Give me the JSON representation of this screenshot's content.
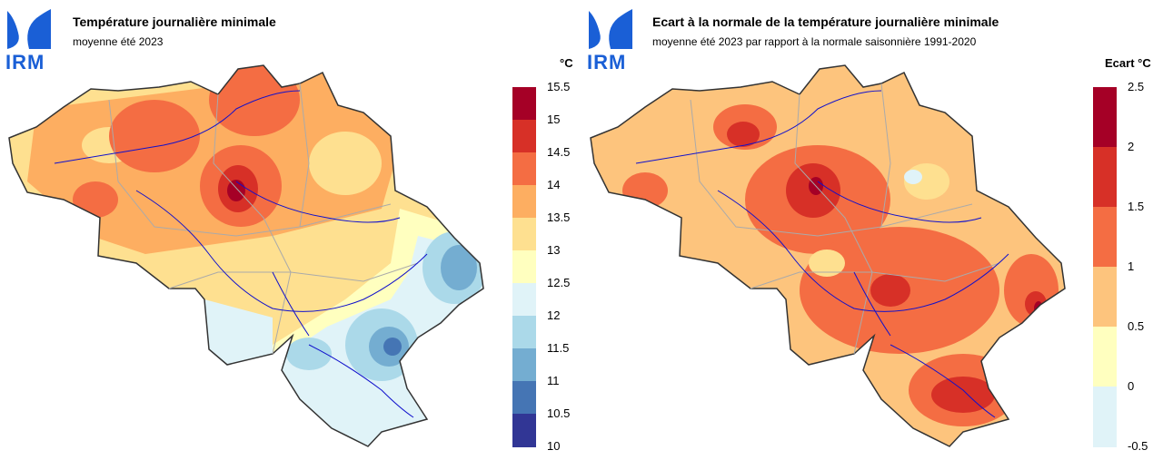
{
  "left": {
    "logo_text": "IRM",
    "title": "Température journalière minimale",
    "subtitle": "moyenne été 2023",
    "unit": "°C",
    "legend": {
      "ticks": [
        "15.5",
        "15",
        "14.5",
        "14",
        "13.5",
        "13",
        "12.5",
        "12",
        "11.5",
        "11",
        "10.5",
        "10"
      ],
      "colors": [
        "#a50026",
        "#d73027",
        "#f46d43",
        "#fdae61",
        "#fee090",
        "#ffffbf",
        "#e0f3f8",
        "#abd9e9",
        "#74add1",
        "#4575b4",
        "#313695"
      ]
    }
  },
  "right": {
    "logo_text": "IRM",
    "title": "Ecart à la normale de la température journalière minimale",
    "subtitle": "moyenne été 2023 par rapport à la normale saisonnière 1991-2020",
    "unit": "Ecart °C",
    "legend": {
      "ticks": [
        "2.5",
        "2",
        "1.5",
        "1",
        "0.5",
        "0",
        "-0.5"
      ],
      "colors": [
        "#a50026",
        "#d73027",
        "#f46d43",
        "#fdc47d",
        "#ffffbf",
        "#e0f3f8"
      ]
    }
  }
}
